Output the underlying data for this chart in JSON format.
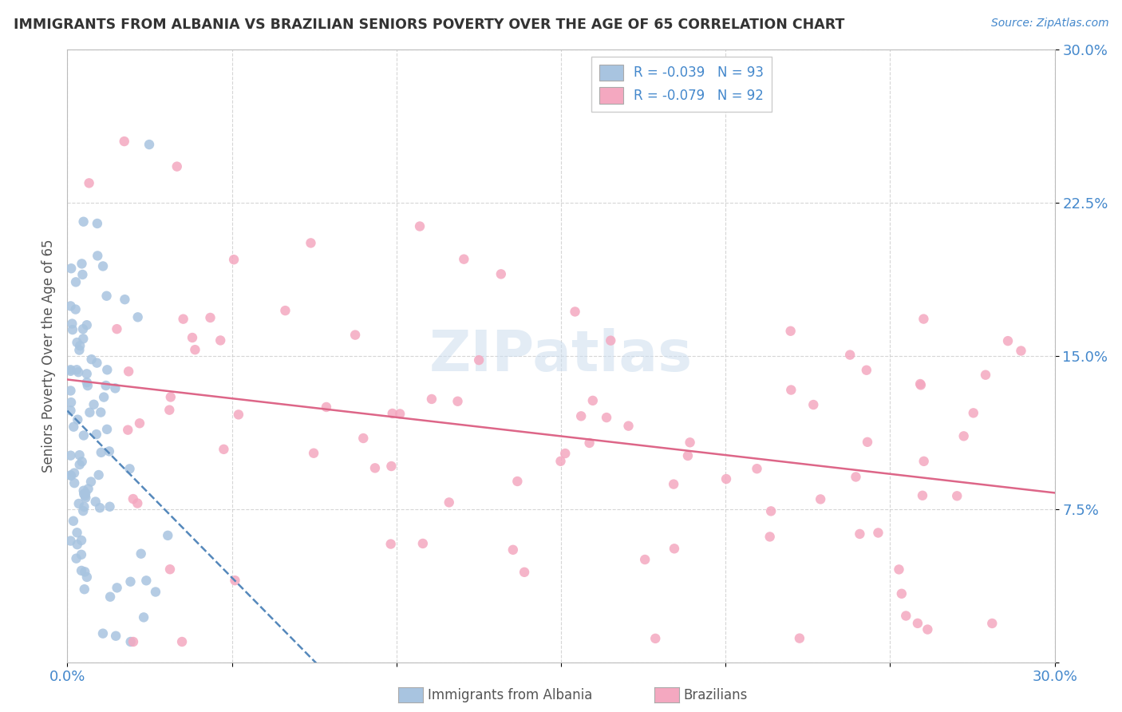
{
  "title": "IMMIGRANTS FROM ALBANIA VS BRAZILIAN SENIORS POVERTY OVER THE AGE OF 65 CORRELATION CHART",
  "source": "Source: ZipAtlas.com",
  "ylabel": "Seniors Poverty Over the Age of 65",
  "xlim": [
    0.0,
    0.3
  ],
  "ylim": [
    0.0,
    0.3
  ],
  "albania_color": "#a8c4e0",
  "brazil_color": "#f4a8c0",
  "albania_line_color": "#5588bb",
  "brazil_line_color": "#dd6688",
  "watermark": "ZIPatlas",
  "background_color": "#ffffff",
  "grid_color": "#cccccc",
  "title_color": "#333333",
  "axis_label_color": "#4488cc",
  "legend_text_color": "#4488cc"
}
